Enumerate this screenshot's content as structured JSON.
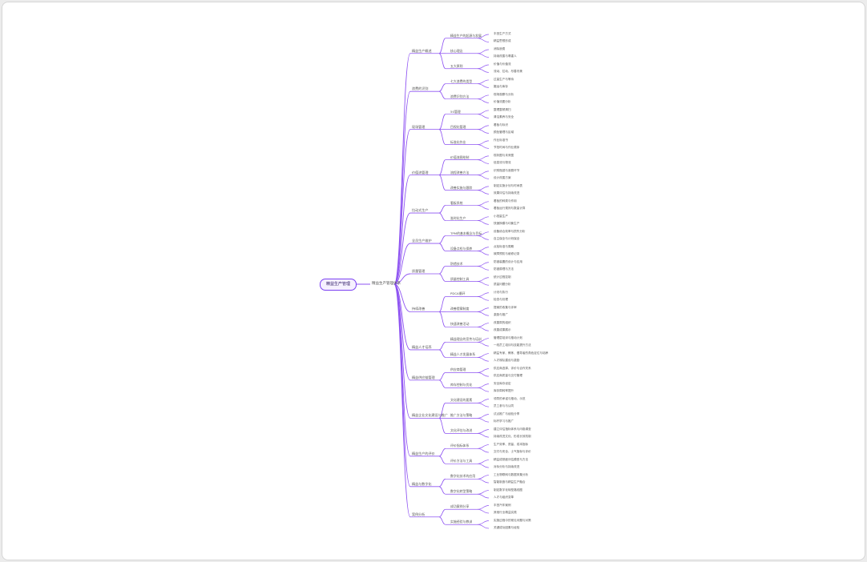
{
  "colors": {
    "line": "#8e53f2",
    "root_border": "#7b3ff2",
    "root_fill": "#f6f1ff",
    "text": "#555555"
  },
  "root": "精益生产管理",
  "center": "精益生产管理体系",
  "branches": [
    {
      "label": "精益生产概述",
      "children": [
        {
          "label": "精益生产的起源与发展",
          "children": [
            "丰田生产方式",
            "精益思想形成"
          ]
        },
        {
          "label": "核心理念",
          "children": [
            "消除浪费",
            "持续改善与尊重人"
          ]
        },
        {
          "label": "五大原则",
          "children": [
            "价值与价值流",
            "流动、拉动、尽善尽美"
          ]
        }
      ]
    },
    {
      "label": "浪费的识别",
      "children": [
        {
          "label": "七大浪费的类型",
          "children": [
            "过量生产与等待",
            "搬运与库存"
          ]
        },
        {
          "label": "浪费识别方法",
          "children": [
            "现场观察与分析",
            "价值流图分析"
          ]
        }
      ]
    },
    {
      "label": "现场管理",
      "children": [
        {
          "label": "5S管理",
          "children": [
            "整理整顿清扫",
            "清洁素养与安全"
          ]
        },
        {
          "label": "目视化管理",
          "children": [
            "看板与标识",
            "颜色管理与区域"
          ]
        },
        {
          "label": "标准化作业",
          "children": [
            "作业标准书",
            "节拍时间与作业顺序"
          ]
        }
      ]
    },
    {
      "label": "价值流管理",
      "children": [
        {
          "label": "价值流图绘制",
          "children": [
            "现状图与未来图",
            "信息流与物流"
          ]
        },
        {
          "label": "流程改善方法",
          "children": [
            "识别瓶颈与浪费环节",
            "设计改善方案"
          ]
        },
        {
          "label": "改善实施与跟踪",
          "children": [
            "制定实施计划与时间表",
            "效果评估与持续改进"
          ]
        }
      ]
    },
    {
      "label": "拉动式生产",
      "children": [
        {
          "label": "看板系统",
          "children": [
            "看板的种类与作用",
            "看板运行规则与数量计算"
          ]
        },
        {
          "label": "准时化生产",
          "children": [
            "小批量生产",
            "快速换模与均衡生产"
          ]
        }
      ]
    },
    {
      "label": "全员生产维护",
      "children": [
        {
          "label": "TPM的基本概念与目标",
          "children": [
            "设备综合效率与损失分析",
            "自主保全与计划保全"
          ]
        },
        {
          "label": "设备点检与保养",
          "children": [
            "点检标准与周期",
            "故障预防与维修记录"
          ]
        }
      ]
    },
    {
      "label": "质量管理",
      "children": [
        {
          "label": "防错技术",
          "children": [
            "防错装置的设计与应用",
            "防错原理与方法"
          ]
        },
        {
          "label": "质量控制工具",
          "children": [
            "统计过程控制",
            "质量问题分析"
          ]
        }
      ]
    },
    {
      "label": "持续改善",
      "children": [
        {
          "label": "PDCA循环",
          "children": [
            "计划与执行",
            "检查与处理"
          ]
        },
        {
          "label": "改善提案制度",
          "children": [
            "提案的收集与评审",
            "激励与推广"
          ]
        },
        {
          "label": "快速改善活动",
          "children": [
            "改善周的组织",
            "改善成果展示"
          ]
        }
      ]
    },
    {
      "label": "精益人才培养",
      "children": [
        {
          "label": "精益理念的宣传与培训",
          "children": [
            "管理层培训与推动计划",
            "一线员工培训与技能提升方法"
          ]
        },
        {
          "label": "精益人才发展体系",
          "children": [
            "精益专家、教练、倡导者的角色定位与培养",
            "人才梯队建设与激励"
          ]
        }
      ]
    },
    {
      "label": "精益供应链管理",
      "children": [
        {
          "label": "供应商管理",
          "children": [
            "供应商选择、评价与合作关系",
            "供应商质量与交付管理"
          ]
        },
        {
          "label": "库存控制与优化",
          "children": [
            "安全库存设定",
            "库存周转率提升"
          ]
        }
      ]
    },
    {
      "label": "精益企业文化建设与推广",
      "children": [
        {
          "label": "文化建设的要素",
          "children": [
            "领导的承诺与推动、示范",
            "员工参与与认同"
          ]
        },
        {
          "label": "推广方法与策略",
          "children": [
            "试点推广与经验分享",
            "标杆学习与推广"
          ]
        },
        {
          "label": "文化评估与改进",
          "children": [
            "建立评估指标体系与问卷调查",
            "持续改进文化、形成长效机制"
          ]
        }
      ]
    },
    {
      "label": "精益生产的评价",
      "children": [
        {
          "label": "评价指标体系",
          "children": [
            "生产效率、质量、成本指标",
            "交付与安全、士气指标与评价"
          ]
        },
        {
          "label": "评价方法与工具",
          "children": [
            "精益成熟度评估模型与方法",
            "对标分析与持续改进"
          ]
        }
      ]
    },
    {
      "label": "精益与数字化",
      "children": [
        {
          "label": "数字化技术的应用",
          "children": [
            "工业物联网与数据采集分析",
            "智能制造与精益生产融合"
          ]
        },
        {
          "label": "数字化转型策略",
          "children": [
            "制定数字化转型路线图",
            "人才与组织变革"
          ]
        }
      ]
    },
    {
      "label": "案例分析",
      "children": [
        {
          "label": "成功案例分享",
          "children": [
            "丰田汽车案例",
            "其他行业精益实践"
          ]
        },
        {
          "label": "实施经验与教训",
          "children": [
            "实施过程中的常见问题与对策",
            "关键成功因素与经验"
          ]
        }
      ]
    }
  ]
}
